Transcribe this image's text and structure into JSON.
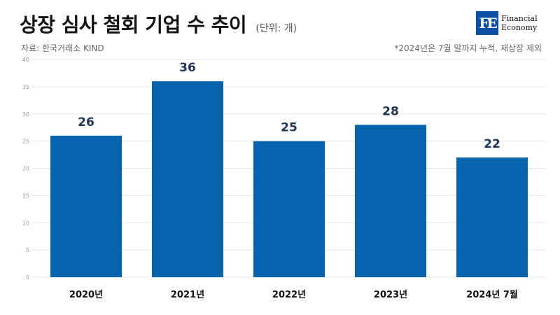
{
  "header": {
    "title": "상장 심사 철회 기업 수 추이",
    "unit": "(단위: 개)",
    "source": "자료: 한국거래소 KIND",
    "note": "*2024년은 7월 말까지 누적, 재상장 제외"
  },
  "logo": {
    "mark": "FE",
    "line1": "Financial",
    "line2": "Economy"
  },
  "chart_data": {
    "type": "bar",
    "title": "상장 심사 철회 기업 수 추이",
    "categories": [
      "2020년",
      "2021년",
      "2022년",
      "2023년",
      "2024년 7월"
    ],
    "values": [
      26,
      36,
      25,
      28,
      22
    ],
    "ylim": [
      0,
      40
    ],
    "yticks": [
      0,
      5,
      10,
      15,
      20,
      25,
      30,
      35,
      40
    ],
    "grid": true,
    "bar_color": "#0863ad",
    "label_color": "#1d3552"
  }
}
